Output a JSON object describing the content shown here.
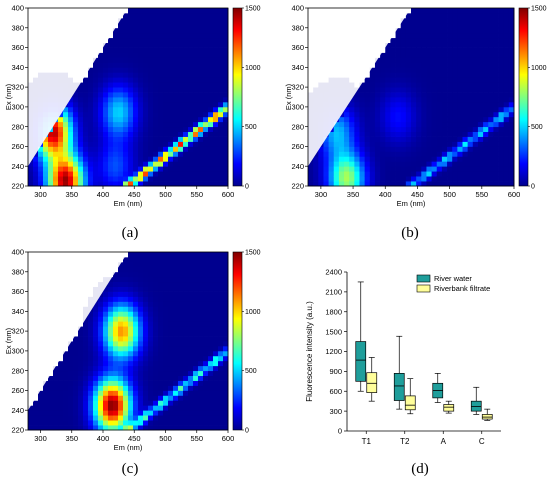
{
  "captions": {
    "a": "(a)",
    "b": "(b)",
    "c": "(c)",
    "d": "(d)"
  },
  "colors": {
    "river_water": "#1f9e9b",
    "riverbank_filtrate": "#fffe9a"
  },
  "chart_data": [
    {
      "type": "heatmap",
      "id": "a",
      "xlabel": "Em (nm)",
      "ylabel": "Ex (nm)",
      "xlim": [
        280,
        600
      ],
      "ylim": [
        220,
        400
      ],
      "x_ticks": [
        300,
        350,
        400,
        450,
        500,
        550,
        600
      ],
      "y_ticks": [
        220,
        240,
        260,
        280,
        300,
        320,
        340,
        360,
        380,
        400
      ],
      "colorbar": {
        "min": 0,
        "max": 1500,
        "ticks": [
          0,
          500,
          1000,
          1500
        ]
      },
      "peaks": [
        {
          "em": 320,
          "ex": 275,
          "intensity": 1400
        },
        {
          "em": 340,
          "ex": 225,
          "intensity": 1450
        },
        {
          "em": 425,
          "ex": 295,
          "intensity": 500
        },
        {
          "em": 420,
          "ex": 240,
          "intensity": 300
        }
      ],
      "scatter_line_intensity": 1300
    },
    {
      "type": "heatmap",
      "id": "b",
      "xlabel": "Em (nm)",
      "ylabel": "Ex (nm)",
      "xlim": [
        280,
        600
      ],
      "ylim": [
        220,
        400
      ],
      "x_ticks": [
        300,
        350,
        400,
        450,
        500,
        550,
        600
      ],
      "y_ticks": [
        220,
        240,
        260,
        280,
        300,
        320,
        340,
        360,
        380,
        400
      ],
      "colorbar": {
        "min": 0,
        "max": 1500,
        "ticks": [
          0,
          500,
          1000,
          1500
        ]
      },
      "peaks": [
        {
          "em": 325,
          "ex": 275,
          "intensity": 450
        },
        {
          "em": 340,
          "ex": 228,
          "intensity": 800
        },
        {
          "em": 420,
          "ex": 290,
          "intensity": 200
        }
      ],
      "scatter_line_intensity": 550
    },
    {
      "type": "heatmap",
      "id": "c",
      "xlabel": "Em (nm)",
      "ylabel": "Ex (nm)",
      "xlim": [
        280,
        600
      ],
      "ylim": [
        220,
        400
      ],
      "x_ticks": [
        300,
        350,
        400,
        450,
        500,
        550,
        600
      ],
      "y_ticks": [
        220,
        240,
        260,
        280,
        300,
        320,
        340,
        360,
        380,
        400
      ],
      "colorbar": {
        "min": 0,
        "max": 1500,
        "ticks": [
          0,
          500,
          1000,
          1500
        ]
      },
      "peaks": [
        {
          "em": 415,
          "ex": 245,
          "intensity": 1500
        },
        {
          "em": 430,
          "ex": 320,
          "intensity": 1100
        }
      ],
      "scatter_line_intensity": 700
    },
    {
      "type": "box",
      "id": "d",
      "title": "",
      "xlabel": "",
      "ylabel": "Fluorescence intensity (a.u.)",
      "categories": [
        "T1",
        "T2",
        "A",
        "C"
      ],
      "ylim": [
        0,
        2400
      ],
      "y_ticks": [
        0,
        300,
        600,
        900,
        1200,
        1500,
        1800,
        2100,
        2400
      ],
      "legend_position": "top-right",
      "series": [
        {
          "name": "River water",
          "color": "#1f9e9b",
          "boxes": [
            {
              "min": 600,
              "q1": 750,
              "median": 1070,
              "q3": 1350,
              "max": 2250
            },
            {
              "min": 330,
              "q1": 460,
              "median": 680,
              "q3": 870,
              "max": 1430
            },
            {
              "min": 430,
              "q1": 500,
              "median": 610,
              "q3": 720,
              "max": 870
            },
            {
              "min": 250,
              "q1": 300,
              "median": 370,
              "q3": 450,
              "max": 660
            }
          ]
        },
        {
          "name": "Riverbank filtrate",
          "color": "#fffe9a",
          "boxes": [
            {
              "min": 450,
              "q1": 580,
              "median": 720,
              "q3": 880,
              "max": 1110
            },
            {
              "min": 260,
              "q1": 320,
              "median": 390,
              "q3": 530,
              "max": 790
            },
            {
              "min": 270,
              "q1": 300,
              "median": 360,
              "q3": 400,
              "max": 450
            },
            {
              "min": 160,
              "q1": 180,
              "median": 210,
              "q3": 250,
              "max": 330
            }
          ]
        }
      ]
    }
  ]
}
